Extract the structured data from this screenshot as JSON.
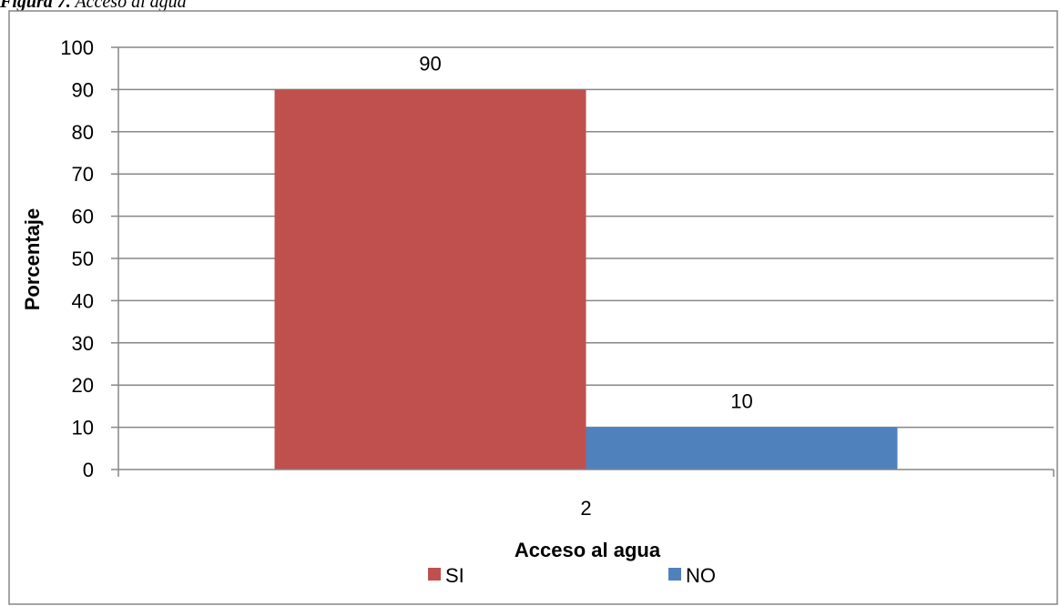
{
  "caption": {
    "label": "Figura 7.",
    "text": " Acceso al agua"
  },
  "chart_data": {
    "type": "bar",
    "categories": [
      "2"
    ],
    "series": [
      {
        "name": "SI",
        "values": [
          90
        ],
        "color": "#c0504d"
      },
      {
        "name": "NO",
        "values": [
          10
        ],
        "color": "#4f81bd"
      }
    ],
    "data_labels": [
      "90",
      "10"
    ],
    "title": "",
    "xlabel": "Acceso al agua",
    "ylabel": "Porcentaje",
    "ylim": [
      0,
      100
    ],
    "yticks": [
      "0",
      "10",
      "20",
      "30",
      "40",
      "50",
      "60",
      "70",
      "80",
      "90",
      "100"
    ],
    "grid": true,
    "legend_position": "bottom"
  }
}
